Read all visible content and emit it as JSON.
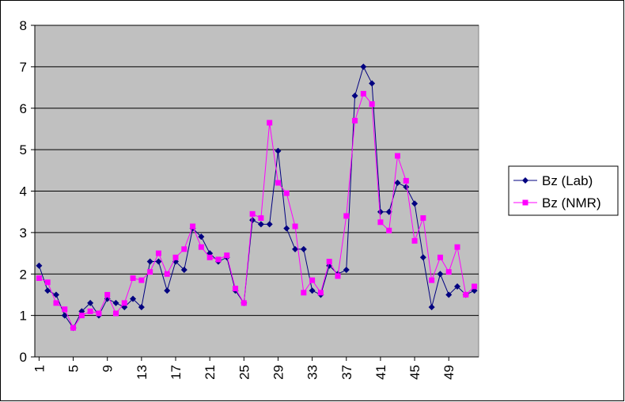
{
  "chart_data": {
    "type": "line",
    "x": [
      1,
      2,
      3,
      4,
      5,
      6,
      7,
      8,
      9,
      10,
      11,
      12,
      13,
      14,
      15,
      16,
      17,
      18,
      19,
      20,
      21,
      22,
      23,
      24,
      25,
      26,
      27,
      28,
      29,
      30,
      31,
      32,
      33,
      34,
      35,
      36,
      37,
      38,
      39,
      40,
      41,
      42,
      43,
      44,
      45,
      46,
      47,
      48,
      49,
      50,
      51,
      52
    ],
    "xlim": [
      0.5,
      52.5
    ],
    "xticks": [
      1,
      5,
      9,
      13,
      17,
      21,
      25,
      29,
      33,
      37,
      41,
      45,
      49
    ],
    "ylim": [
      0,
      8
    ],
    "yticks": [
      0,
      1,
      2,
      3,
      4,
      5,
      6,
      7,
      8
    ],
    "grid": true,
    "legend": "right",
    "series": [
      {
        "name": "Bz (Lab)",
        "color": "#000080",
        "marker": "diamond",
        "values": [
          2.2,
          1.6,
          1.5,
          1.0,
          0.7,
          1.1,
          1.3,
          1.0,
          1.4,
          1.3,
          1.2,
          1.4,
          1.2,
          2.3,
          2.3,
          1.6,
          2.3,
          2.1,
          3.1,
          2.9,
          2.5,
          2.3,
          2.4,
          1.6,
          1.3,
          3.3,
          3.2,
          3.2,
          4.97,
          3.1,
          2.6,
          2.6,
          1.6,
          1.5,
          2.2,
          2.0,
          2.1,
          6.3,
          7.0,
          6.6,
          3.5,
          3.5,
          4.2,
          4.1,
          3.7,
          2.4,
          1.2,
          2.0,
          1.5,
          1.7,
          1.5,
          1.6
        ]
      },
      {
        "name": "Bz (NMR)",
        "color": "#ff00ff",
        "marker": "square",
        "values": [
          1.9,
          1.8,
          1.3,
          1.15,
          0.7,
          1.0,
          1.1,
          1.05,
          1.5,
          1.05,
          1.3,
          1.9,
          1.85,
          2.05,
          2.5,
          2.0,
          2.4,
          2.6,
          3.15,
          2.65,
          2.4,
          2.35,
          2.45,
          1.65,
          1.3,
          3.45,
          3.35,
          5.65,
          4.2,
          3.95,
          3.15,
          1.55,
          1.85,
          1.55,
          2.3,
          1.95,
          3.4,
          5.7,
          6.35,
          6.1,
          3.25,
          3.05,
          4.85,
          4.25,
          2.8,
          3.35,
          1.85,
          2.4,
          2.05,
          2.65,
          1.5,
          1.7
        ]
      }
    ]
  }
}
